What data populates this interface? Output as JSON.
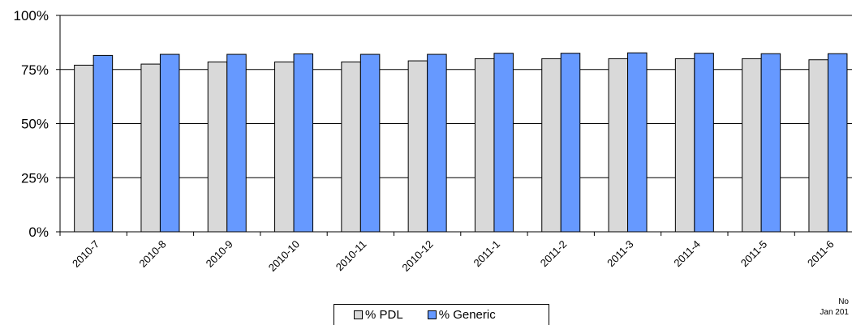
{
  "chart_data": {
    "type": "bar",
    "categories": [
      "2010-7",
      "2010-8",
      "2010-9",
      "2010-10",
      "2010-11",
      "2010-12",
      "2011-1",
      "2011-2",
      "2011-3",
      "2011-4",
      "2011-5",
      "2011-6"
    ],
    "series": [
      {
        "name": "% PDL",
        "color": "#d9d9d9",
        "values": [
          77,
          77.5,
          78.5,
          78.5,
          78.5,
          79,
          80,
          80,
          80,
          80,
          80,
          79.5
        ]
      },
      {
        "name": "% Generic",
        "color": "#6699ff",
        "values": [
          81.5,
          82,
          82,
          82.2,
          82,
          82,
          82.5,
          82.5,
          82.7,
          82.5,
          82.3,
          82.3
        ]
      }
    ],
    "ylim": [
      0,
      100
    ],
    "yticks": [
      "0%",
      "25%",
      "50%",
      "75%",
      "100%"
    ],
    "ytick_values": [
      0,
      25,
      50,
      75,
      100
    ],
    "grid": true,
    "legend_placement": "bottom-center",
    "notes": [
      "No",
      "Jan 201"
    ]
  }
}
